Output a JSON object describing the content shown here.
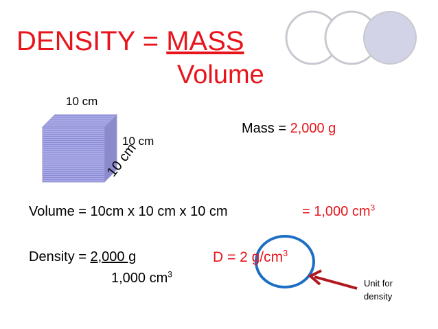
{
  "title": {
    "lhs": "DENSITY = ",
    "numerator": "MASS",
    "denominator": "Volume"
  },
  "cube": {
    "top": "10 cm",
    "side": "10 cm",
    "depth": "10 cm"
  },
  "mass": {
    "label": "Mass = ",
    "value": "2,000 g"
  },
  "volume": {
    "label": "Volume = 10cm x 10 cm x 10 cm",
    "result": "= 1,000 cm",
    "exponent": "3"
  },
  "density": {
    "label": "Density = ",
    "numerator": "2,000 g",
    "denominator": "1,000 cm",
    "exponent": "3"
  },
  "answer": {
    "text": "D = 2 g/cm",
    "exponent": "3"
  },
  "note": {
    "line1": "Unit for",
    "line2": "density"
  }
}
